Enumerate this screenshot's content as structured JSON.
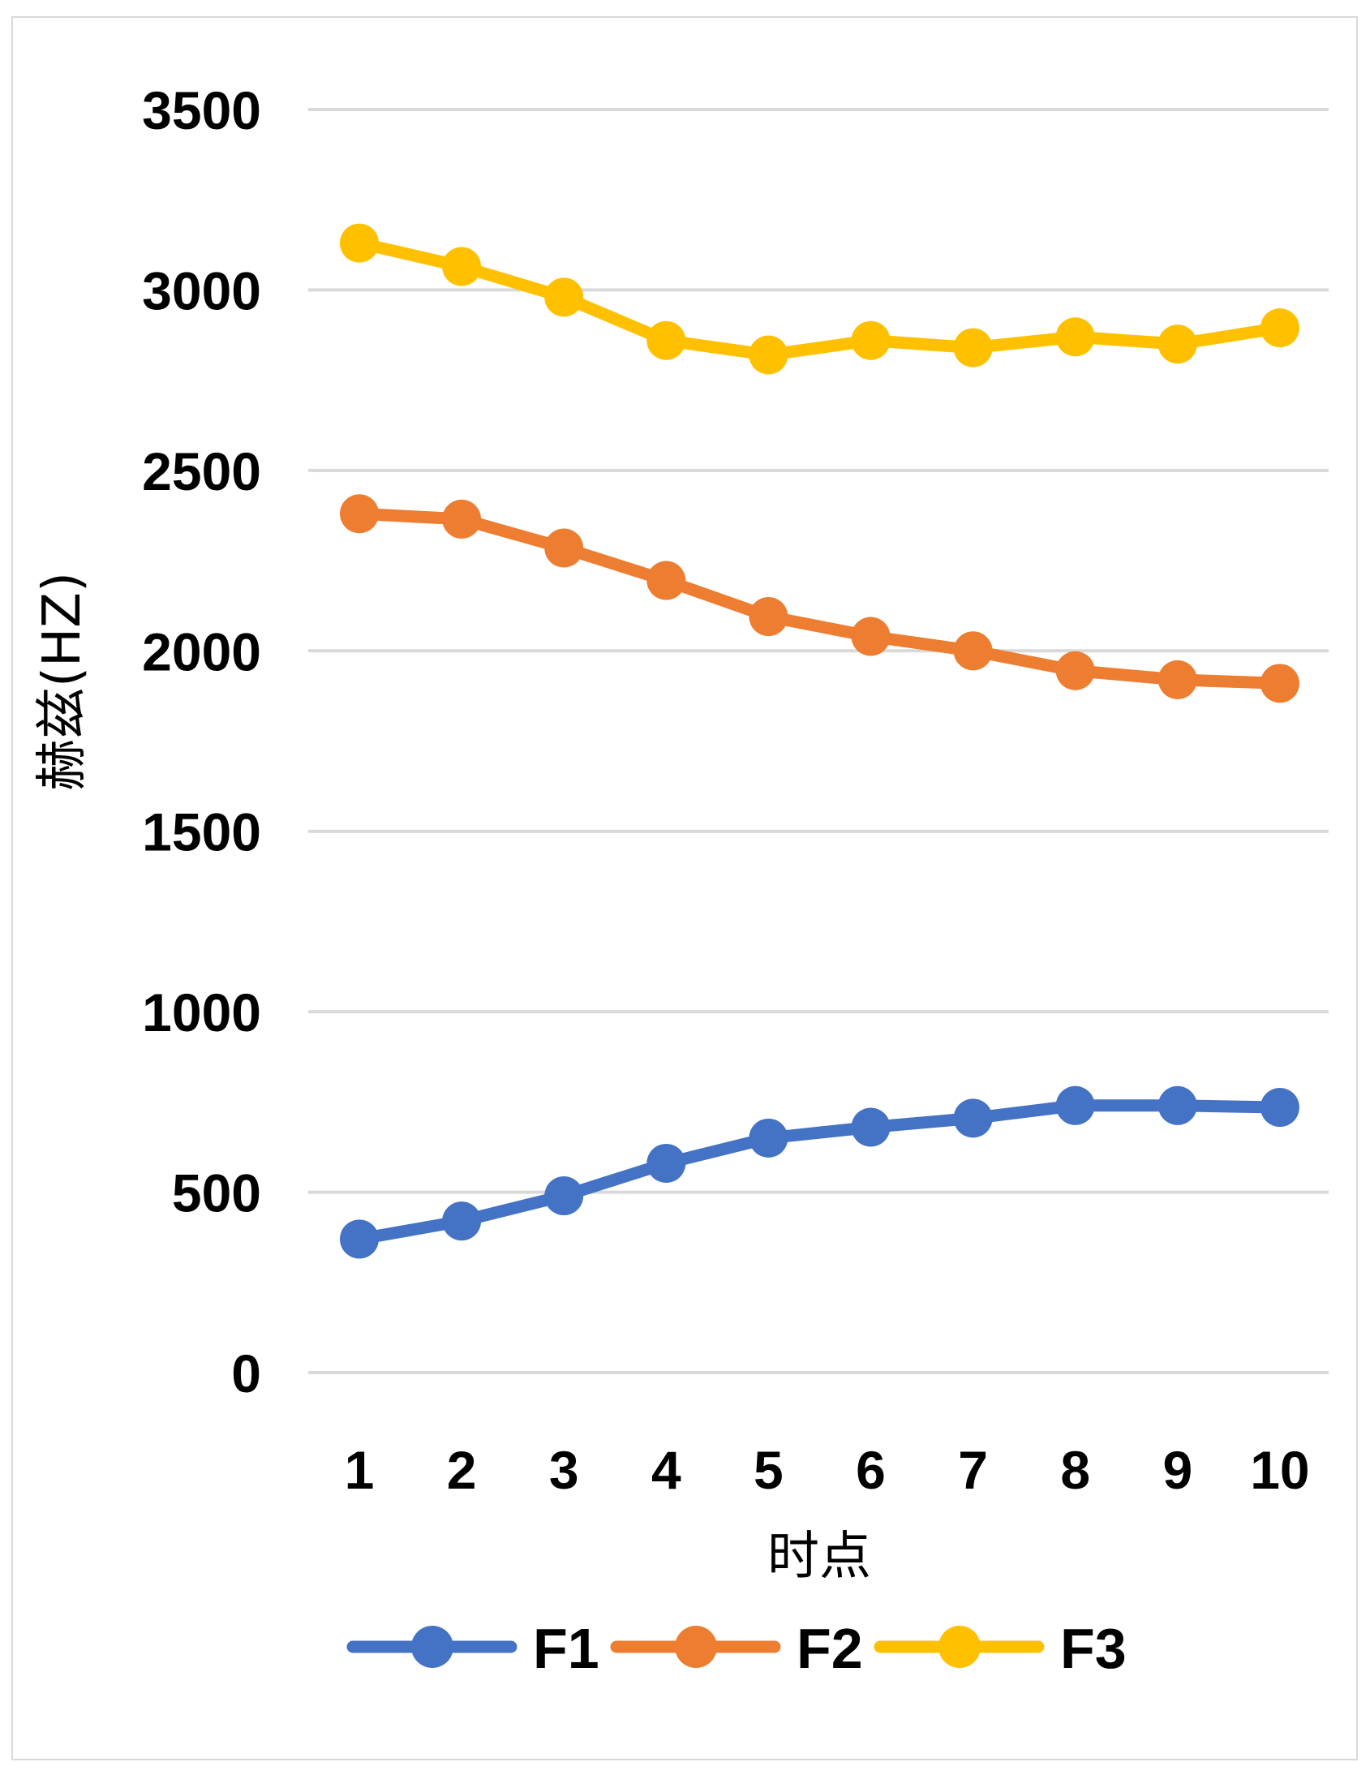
{
  "chart_data": {
    "type": "line",
    "title": "",
    "xlabel": "时点",
    "ylabel": "赫兹(HZ)",
    "categories": [
      "1",
      "2",
      "3",
      "4",
      "5",
      "6",
      "7",
      "8",
      "9",
      "10"
    ],
    "ylim": [
      0,
      3500
    ],
    "yticks": [
      "0",
      "500",
      "1000",
      "1500",
      "2000",
      "2500",
      "3000",
      "3500"
    ],
    "grid": true,
    "legend_position": "bottom",
    "series": [
      {
        "name": "F1",
        "color": "#4472C4",
        "values": [
          370,
          420,
          490,
          580,
          650,
          680,
          705,
          740,
          740,
          735
        ]
      },
      {
        "name": "F2",
        "color": "#ED7D31",
        "values": [
          2380,
          2365,
          2285,
          2195,
          2095,
          2040,
          2000,
          1945,
          1920,
          1910
        ]
      },
      {
        "name": "F3",
        "color": "#FFC000",
        "values": [
          3130,
          3065,
          2980,
          2860,
          2820,
          2860,
          2840,
          2870,
          2850,
          2895
        ]
      }
    ]
  }
}
